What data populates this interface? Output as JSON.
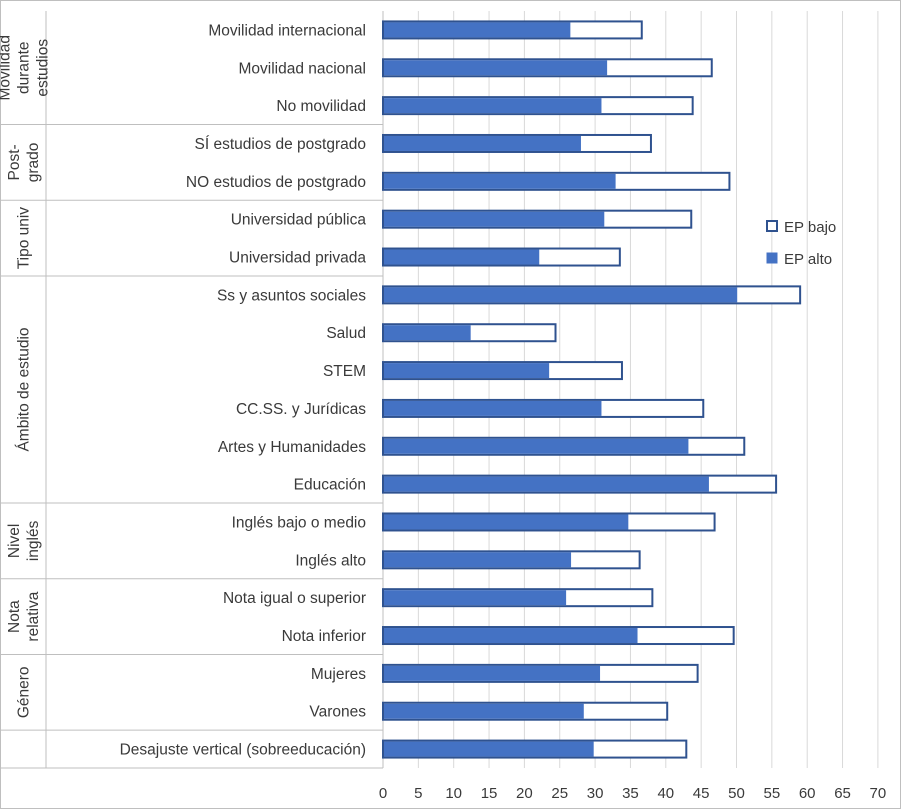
{
  "chart_data": {
    "type": "bar",
    "orientation": "horizontal",
    "stacking": "overlay",
    "xlim": [
      0,
      70
    ],
    "x_ticks": [
      0,
      5,
      10,
      15,
      20,
      25,
      30,
      35,
      40,
      45,
      50,
      55,
      60,
      65,
      70
    ],
    "grid": true,
    "legend_position": "right",
    "categories": [
      "Movilidad internacional",
      "Movilidad nacional",
      "No movilidad",
      "SÍ estudios de postgrado",
      "NO estudios de postgrado",
      "Universidad pública",
      "Universidad privada",
      "Ss y asuntos sociales",
      "Salud",
      "STEM",
      "CC.SS. y Jurídicas",
      "Artes y Humanidades",
      "Educación",
      "Inglés bajo o medio",
      "Inglés alto",
      "Nota igual o superior ",
      "Nota inferior ",
      "Mujeres",
      "Varones",
      "Desajuste vertical (sobreeducación)"
    ],
    "series": [
      {
        "name": "EP bajo",
        "color": "#2f528f",
        "fill": "#ffffff",
        "values": [
          36.6,
          46.5,
          43.8,
          37.9,
          49.0,
          43.6,
          33.5,
          59.0,
          24.4,
          33.8,
          45.3,
          51.1,
          55.6,
          46.9,
          36.3,
          38.1,
          49.6,
          44.5,
          40.2,
          42.9
        ]
      },
      {
        "name": "EP alto",
        "color": "#4472c4",
        "values": [
          26.5,
          31.7,
          30.9,
          28.0,
          32.9,
          31.3,
          22.1,
          50.1,
          12.4,
          23.5,
          30.9,
          43.2,
          46.1,
          34.7,
          26.6,
          25.9,
          36.0,
          30.7,
          28.4,
          29.8
        ]
      }
    ],
    "groups": [
      {
        "label": "Movilidad durante estudios",
        "lines": [
          "Movilidad",
          "durante",
          "estudios"
        ],
        "count": 3
      },
      {
        "label": "Post-grado",
        "lines": [
          "Post-",
          "grado"
        ],
        "count": 2
      },
      {
        "label": "Tipo univ",
        "lines": [
          "Tipo univ"
        ],
        "count": 2
      },
      {
        "label": "Ámbito de estudio",
        "lines": [
          "Ámbito de estudio"
        ],
        "count": 6
      },
      {
        "label": "Nivel inglés",
        "lines": [
          "Nivel",
          "inglés"
        ],
        "count": 2
      },
      {
        "label": "Nota relativa",
        "lines": [
          "Nota",
          "relativa"
        ],
        "count": 2
      },
      {
        "label": "Género",
        "lines": [
          "Género"
        ],
        "count": 2
      },
      {
        "label": "",
        "lines": [],
        "count": 1
      }
    ]
  }
}
